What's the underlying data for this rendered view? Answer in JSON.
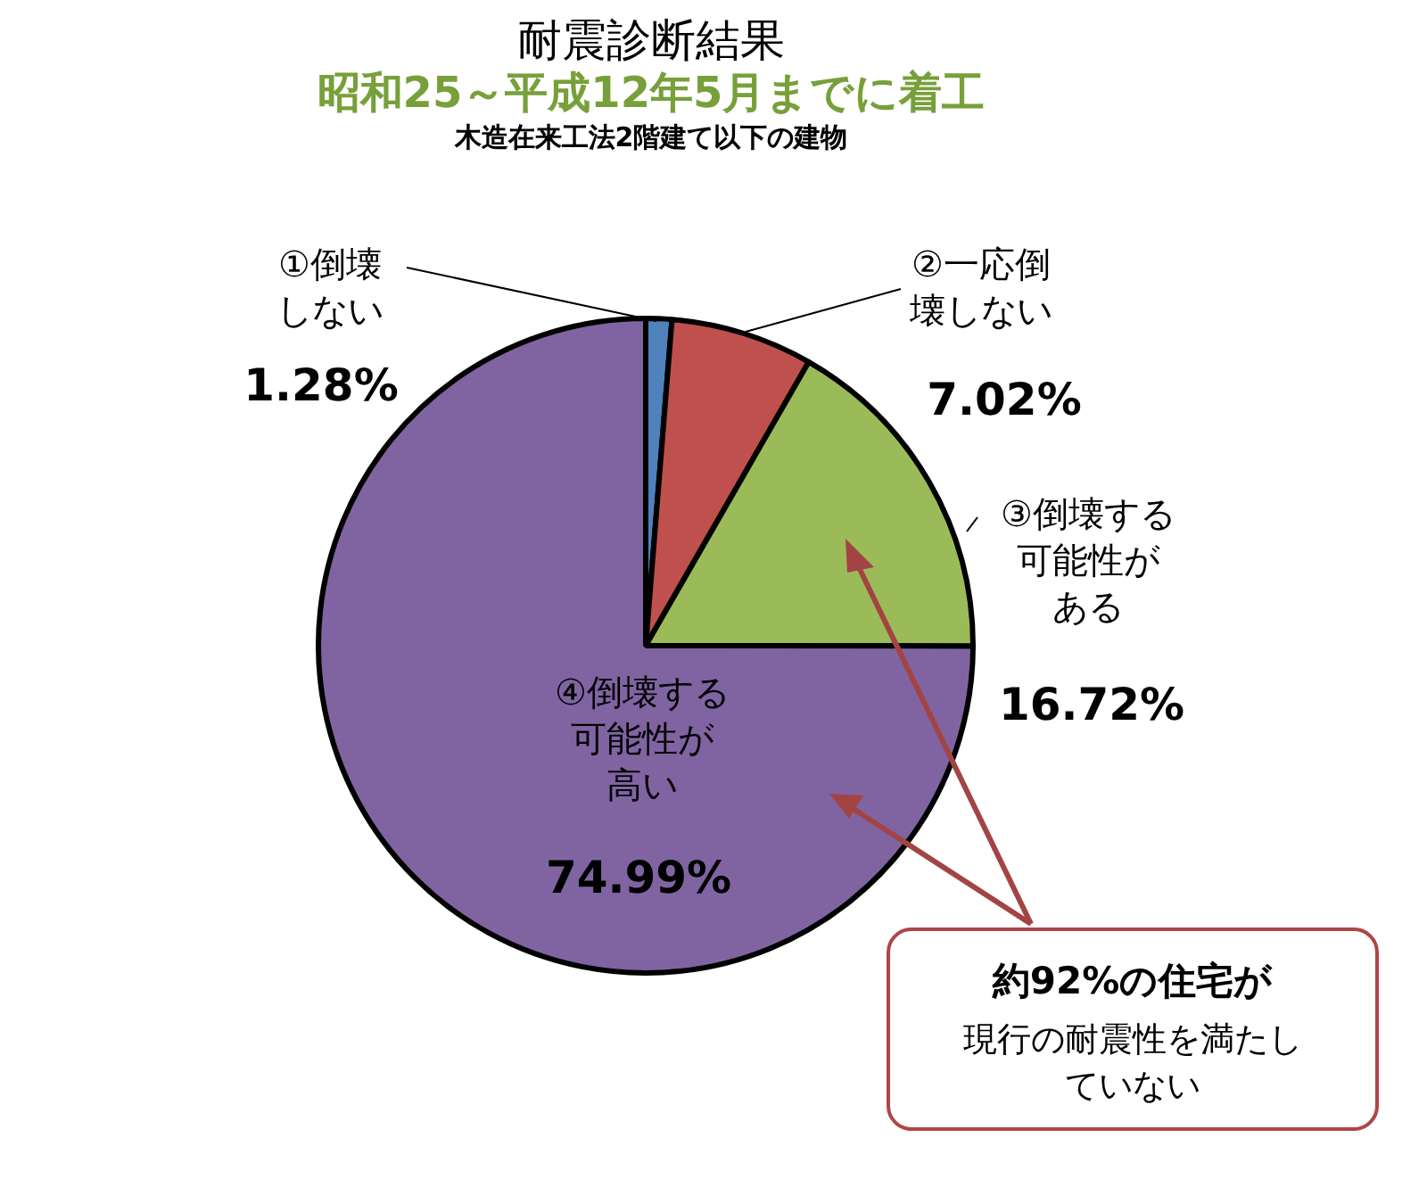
{
  "chart_data": {
    "type": "pie",
    "title": "耐震診断結果",
    "subtitle": "昭和25～平成12年5月までに着工",
    "annotations": [
      "木造在来工法2階建て以下の建物",
      "約92%の住宅が",
      "現行の耐震性を満たしていない"
    ],
    "categories": [
      "①倒壊しない",
      "②一応倒壊しない",
      "③倒壊する可能性がある",
      "④倒壊する可能性が高い"
    ],
    "values": [
      1.28,
      7.02,
      16.72,
      74.99
    ],
    "colors": [
      "#4f81bd",
      "#c0504d",
      "#9bbb59",
      "#8064a2"
    ],
    "value_labels": [
      "1.28%",
      "7.02%",
      "16.72%",
      "74.99%"
    ]
  }
}
